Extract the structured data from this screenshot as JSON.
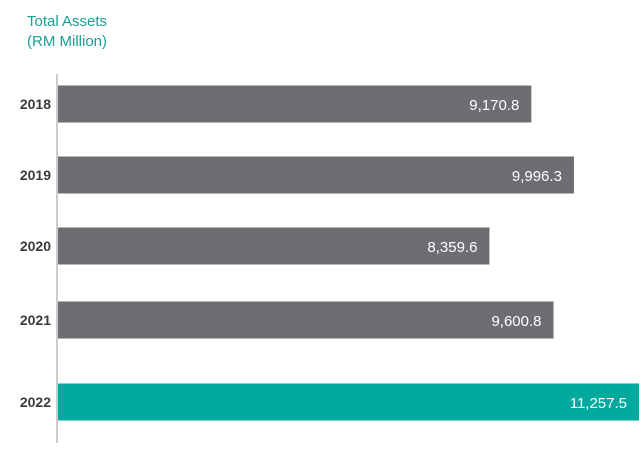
{
  "chart_data": {
    "type": "bar",
    "orientation": "horizontal",
    "title": "Total Assets",
    "subtitle": "(RM Million)",
    "categories": [
      "2018",
      "2019",
      "2020",
      "2021",
      "2022"
    ],
    "values": [
      9170.8,
      9996.3,
      8359.6,
      9600.8,
      11257.5
    ],
    "value_labels": [
      "9,170.8",
      "9,996.3",
      "8,359.6",
      "9,600.8",
      "11,257.5"
    ],
    "xlim": [
      0,
      11257.5
    ],
    "grid": false,
    "legend": "none",
    "colors": {
      "default_bar": "#6d6e71",
      "highlight_bar": "#00a99d",
      "title": "#1a9e95",
      "axis": "#cccccc"
    },
    "highlight_category": "2022"
  }
}
